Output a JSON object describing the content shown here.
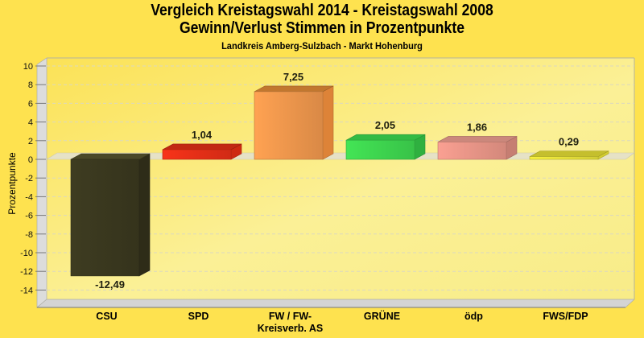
{
  "header": {
    "title_line1": "Vergleich Kreistagswahl 2014 - Kreistagswahl 2008",
    "title_line2": "Gewinn/Verlust Stimmen in Prozentpunkte",
    "subtitle": "Landkreis Amberg-Sulzbach - Markt Hohenburg"
  },
  "chart_data": {
    "type": "bar",
    "title": "Vergleich Kreistagswahl 2014 - Kreistagswahl 2008",
    "subtitle": "Gewinn/Verlust Stimmen in Prozentpunkte",
    "region_label": "Landkreis Amberg-Sulzbach - Markt Hohenburg",
    "xlabel": "",
    "ylabel": "Prozentpunkte",
    "ylim": [
      -14,
      10
    ],
    "ytick_step": 2,
    "yticks": [
      10,
      8,
      6,
      4,
      2,
      0,
      -2,
      -4,
      -6,
      -8,
      -10,
      -12,
      -14
    ],
    "grid": "horizontal-dashed",
    "legend_position": "none",
    "style": "3d-bars on yellow background",
    "categories": [
      "CSU",
      "SPD",
      "FW / FW-\nKreisverb. AS",
      "GRÜNE",
      "ödp",
      "FWS/FDP"
    ],
    "values": [
      -12.49,
      1.04,
      7.25,
      2.05,
      1.86,
      0.29
    ],
    "value_labels": [
      "-12,49",
      "1,04",
      "7,25",
      "2,05",
      "1,86",
      "0,29"
    ],
    "bar_colors": [
      {
        "front": "#3C3A20",
        "top": "#4A4828",
        "side": "#2E2C18"
      },
      {
        "front": "#EE3118",
        "top": "#C22813",
        "side": "#CE2A12"
      },
      {
        "front": "#F79C4F",
        "top": "#C1772F",
        "side": "#DD8338"
      },
      {
        "front": "#40DC52",
        "top": "#33BB45",
        "side": "#2FB040"
      },
      {
        "front": "#F09A8C",
        "top": "#CB887C",
        "side": "#C67E72"
      },
      {
        "front": "#EFE93C",
        "top": "#C5BF2D",
        "side": "#D3CD30"
      }
    ]
  },
  "colors": {
    "background": "#FEE24F",
    "plot_gradient_start": "#FBE257",
    "plot_gradient_mid": "#FBF096",
    "plot_gradient_end": "#F8EC88",
    "wall": "#DCDCDC",
    "floor": "#D4D4D4",
    "floor_edge": "#8A8A82",
    "zero_band": "#E6E2C6",
    "zero_band_edge": "#CDC9AC",
    "gridline": "#DBD8C0",
    "tick": "#777777",
    "text": "#111111",
    "value_label_text": "#1F1F10"
  }
}
